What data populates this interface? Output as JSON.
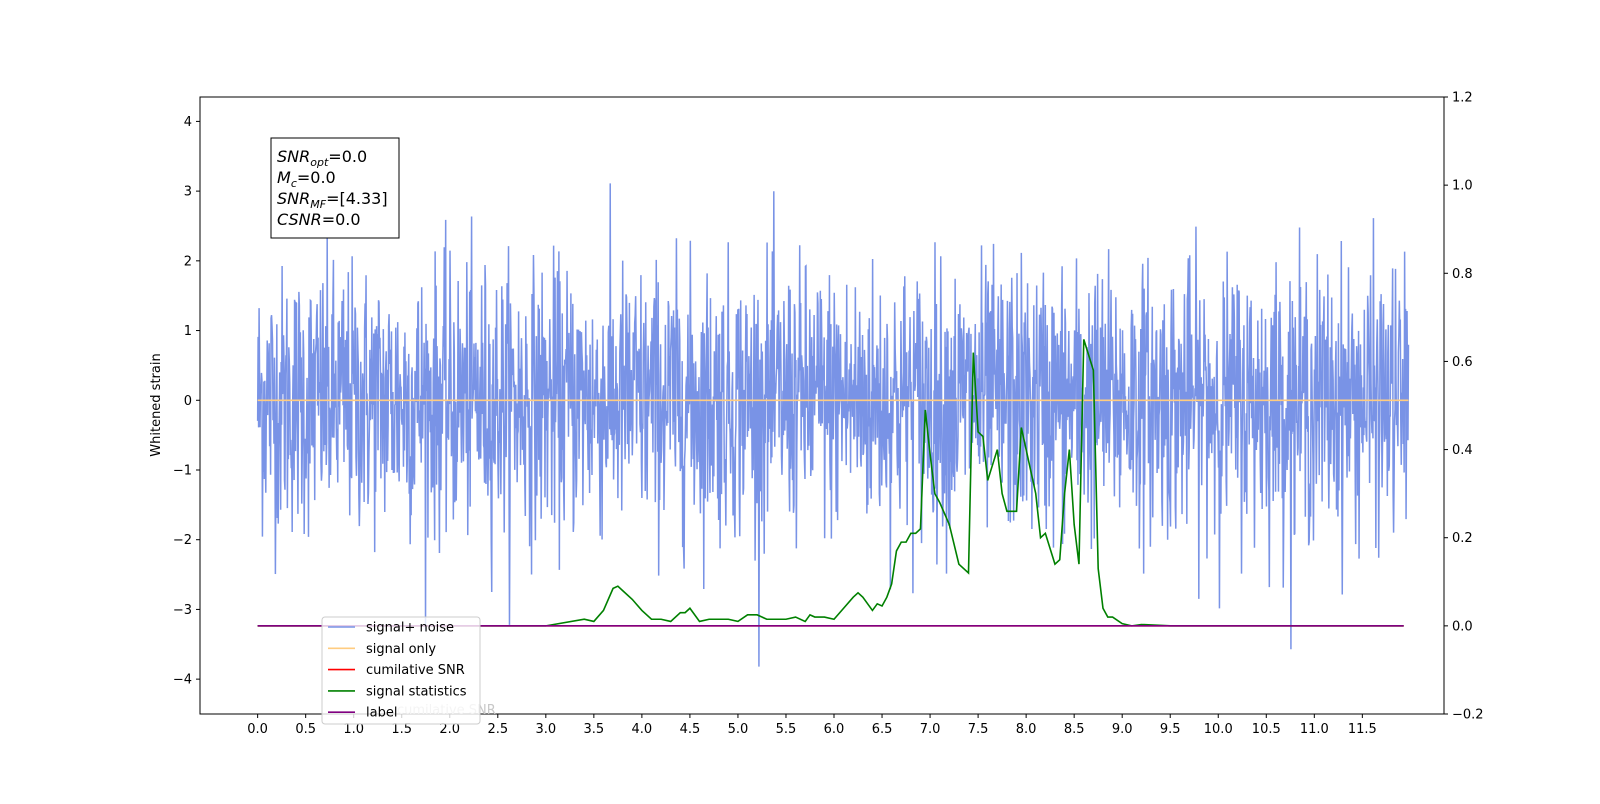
{
  "chart_data": {
    "type": "line",
    "title": "",
    "xlabel": "",
    "ylabel": "Whitened strain",
    "y2label": "",
    "xlim": [
      -0.6,
      12.35
    ],
    "ylim": [
      -4.5,
      4.35
    ],
    "y2lim": [
      -0.2,
      1.2
    ],
    "x_ticks": [
      0.0,
      0.5,
      1.0,
      1.5,
      2.0,
      2.5,
      3.0,
      3.5,
      4.0,
      4.5,
      5.0,
      5.5,
      6.0,
      6.5,
      7.0,
      7.5,
      8.0,
      8.5,
      9.0,
      9.5,
      10.0,
      10.5,
      11.0,
      11.5
    ],
    "x_tick_labels": [
      "0.0",
      "0.5",
      "1.0",
      "1.5",
      "2.0",
      "2.5",
      "3.0",
      "3.5",
      "4.0",
      "4.5",
      "5.0",
      "5.5",
      "6.0",
      "6.5",
      "7.0",
      "7.5",
      "8.0",
      "8.5",
      "9.0",
      "9.5",
      "10.0",
      "10.5",
      "11.0",
      "11.5"
    ],
    "y_ticks": [
      4,
      3,
      2,
      1,
      0,
      -1,
      -2,
      -3,
      -4
    ],
    "y_tick_labels": [
      "4",
      "3",
      "2",
      "1",
      "0",
      "−1",
      "−2",
      "−3",
      "−4"
    ],
    "y2_ticks": [
      1.2,
      1.0,
      0.8,
      0.6,
      0.4,
      0.2,
      0.0,
      -0.2
    ],
    "y2_tick_labels": [
      "1.2",
      "1.0",
      "0.8",
      "0.6",
      "0.4",
      "0.2",
      "0.0",
      "−0.2"
    ],
    "grid": false,
    "legend_position": "lower-left",
    "noise": {
      "x_range": [
        0.0,
        11.98
      ],
      "samples": 2400,
      "std": 0.95,
      "typical_max": 3.95,
      "typical_min": -4.1
    },
    "series": [
      {
        "name": "signal+ noise",
        "axis": "left",
        "color": "#7993e6",
        "kind": "noise-band"
      },
      {
        "name": "signal only",
        "axis": "left",
        "color": "#ffcc80",
        "x": [
          0.0,
          11.98
        ],
        "y": [
          0.0,
          0.0
        ]
      },
      {
        "name": "cumilative SNR",
        "axis": "right",
        "color": "#ff0000",
        "x": [
          0.0,
          11.93
        ],
        "y": [
          0.0,
          0.0
        ]
      },
      {
        "name": "signal statistics",
        "axis": "right",
        "color": "#008000",
        "x": [
          0.0,
          3.0,
          3.4,
          3.5,
          3.6,
          3.7,
          3.75,
          3.8,
          3.9,
          4.0,
          4.1,
          4.2,
          4.3,
          4.4,
          4.45,
          4.5,
          4.6,
          4.7,
          4.8,
          4.9,
          5.0,
          5.1,
          5.2,
          5.3,
          5.4,
          5.5,
          5.6,
          5.7,
          5.75,
          5.8,
          5.9,
          6.0,
          6.1,
          6.2,
          6.25,
          6.3,
          6.4,
          6.45,
          6.5,
          6.55,
          6.6,
          6.65,
          6.7,
          6.75,
          6.8,
          6.85,
          6.9,
          6.95,
          7.0,
          7.05,
          7.1,
          7.2,
          7.3,
          7.4,
          7.45,
          7.5,
          7.55,
          7.6,
          7.7,
          7.75,
          7.8,
          7.9,
          7.95,
          8.0,
          8.1,
          8.15,
          8.2,
          8.3,
          8.35,
          8.4,
          8.45,
          8.5,
          8.55,
          8.6,
          8.7,
          8.75,
          8.8,
          8.85,
          8.9,
          9.0,
          9.1,
          9.2,
          9.3,
          9.5,
          9.7,
          10.0,
          11.93
        ],
        "y": [
          0.0,
          0.0,
          0.015,
          0.01,
          0.035,
          0.085,
          0.09,
          0.08,
          0.06,
          0.035,
          0.015,
          0.015,
          0.01,
          0.03,
          0.03,
          0.04,
          0.01,
          0.015,
          0.015,
          0.015,
          0.01,
          0.025,
          0.025,
          0.015,
          0.015,
          0.015,
          0.02,
          0.01,
          0.025,
          0.02,
          0.02,
          0.015,
          0.04,
          0.065,
          0.075,
          0.065,
          0.035,
          0.05,
          0.045,
          0.065,
          0.095,
          0.17,
          0.19,
          0.19,
          0.21,
          0.21,
          0.22,
          0.49,
          0.39,
          0.3,
          0.28,
          0.23,
          0.14,
          0.12,
          0.62,
          0.44,
          0.43,
          0.33,
          0.4,
          0.3,
          0.26,
          0.26,
          0.45,
          0.4,
          0.3,
          0.2,
          0.21,
          0.14,
          0.15,
          0.3,
          0.4,
          0.23,
          0.14,
          0.65,
          0.58,
          0.13,
          0.04,
          0.02,
          0.02,
          0.005,
          0.0,
          0.003,
          0.002,
          0.0,
          0.0,
          0.0,
          0.0
        ]
      },
      {
        "name": "label",
        "axis": "right",
        "color": "#800080",
        "x": [
          0.0,
          11.93
        ],
        "y": [
          0.0,
          0.0
        ]
      }
    ],
    "legend_overflow_text": "cumilative SNR",
    "info_box": {
      "lines": [
        {
          "base": "SNR",
          "sub": "opt",
          "rest": "=0.0"
        },
        {
          "base": "M",
          "sub": "c",
          "rest": "=0.0"
        },
        {
          "base": "SNR",
          "sub": "MF",
          "rest": "=[4.33]"
        },
        {
          "base": "CSNR",
          "sub": "",
          "rest": "=0.0"
        }
      ]
    }
  }
}
